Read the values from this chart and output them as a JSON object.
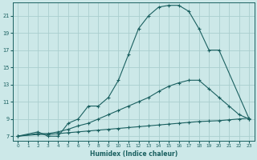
{
  "bg_color": "#cce8e8",
  "grid_color": "#aacece",
  "line_color": "#1a6060",
  "xlabel": "Humidex (Indice chaleur)",
  "xlim": [
    -0.5,
    23.5
  ],
  "ylim": [
    6.5,
    22.5
  ],
  "yticks": [
    7,
    9,
    11,
    13,
    15,
    17,
    19,
    21
  ],
  "xticks": [
    0,
    1,
    2,
    3,
    4,
    5,
    6,
    7,
    8,
    9,
    10,
    11,
    12,
    13,
    14,
    15,
    16,
    17,
    18,
    19,
    20,
    21,
    22,
    23
  ],
  "line1_x": [
    0,
    2,
    3,
    4,
    5,
    6,
    7,
    8,
    9,
    10,
    11,
    12,
    13,
    14,
    15,
    16,
    17,
    18,
    19,
    20,
    23
  ],
  "line1_y": [
    7.0,
    7.5,
    7.0,
    7.0,
    8.5,
    9.0,
    10.5,
    10.5,
    11.5,
    13.5,
    16.5,
    19.5,
    21.0,
    22.0,
    22.2,
    22.2,
    21.5,
    19.5,
    17.0,
    17.0,
    9.0
  ],
  "line2_x": [
    0,
    2,
    3,
    4,
    5,
    6,
    7,
    8,
    9,
    10,
    11,
    12,
    13,
    14,
    15,
    16,
    17,
    18,
    19,
    20,
    21,
    22,
    23
  ],
  "line2_y": [
    7.0,
    7.3,
    7.3,
    7.5,
    7.8,
    8.2,
    8.5,
    9.0,
    9.5,
    10.0,
    10.5,
    11.0,
    11.5,
    12.2,
    12.8,
    13.2,
    13.5,
    13.5,
    12.5,
    11.5,
    10.5,
    9.5,
    9.0
  ],
  "line3_x": [
    0,
    2,
    3,
    4,
    5,
    6,
    7,
    8,
    9,
    10,
    11,
    12,
    13,
    14,
    15,
    16,
    17,
    18,
    19,
    20,
    21,
    22,
    23
  ],
  "line3_y": [
    7.0,
    7.2,
    7.2,
    7.3,
    7.4,
    7.5,
    7.6,
    7.7,
    7.8,
    7.9,
    8.0,
    8.1,
    8.2,
    8.3,
    8.4,
    8.5,
    8.6,
    8.7,
    8.75,
    8.8,
    8.9,
    9.0,
    9.1
  ]
}
